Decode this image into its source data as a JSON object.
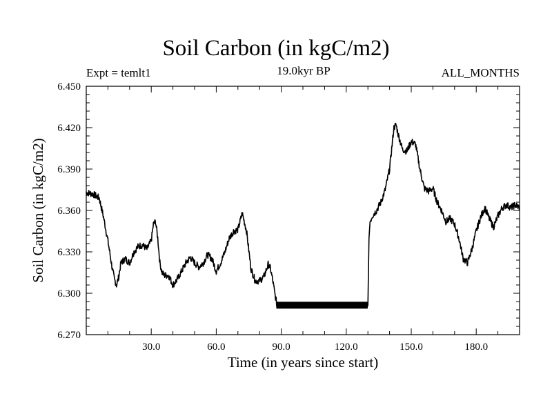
{
  "header": {
    "title": "Soil Carbon (in kgC/m2)",
    "experiment": "Expt = temlt1",
    "period": "19.0kyr BP",
    "months": "ALL_MONTHS"
  },
  "chart_data": {
    "type": "line",
    "title": "Soil Carbon (in kgC/m2)",
    "xlabel": "Time (in years since start)",
    "ylabel": "Soil Carbon (in kgC/m2)",
    "xlim": [
      0,
      200
    ],
    "ylim": [
      6.27,
      6.45
    ],
    "xticks": [
      30,
      60,
      90,
      120,
      150,
      180
    ],
    "xtick_labels": [
      "30.0",
      "60.0",
      "90.0",
      "120.0",
      "150.0",
      "180.0"
    ],
    "yticks": [
      6.27,
      6.3,
      6.33,
      6.36,
      6.39,
      6.42,
      6.45
    ],
    "ytick_labels": [
      "6.270",
      "6.300",
      "6.330",
      "6.360",
      "6.390",
      "6.420",
      "6.450"
    ],
    "grid": false,
    "series": [
      {
        "color": "#000000",
        "x": [
          0,
          3,
          6,
          8,
          10,
          12,
          13,
          14,
          15,
          16,
          18,
          20,
          22,
          24,
          26,
          28,
          30,
          31,
          32,
          33,
          34,
          35,
          36,
          38,
          40,
          42,
          44,
          46,
          48,
          50,
          52,
          54,
          56,
          58,
          60,
          62,
          64,
          66,
          68,
          70,
          72,
          74,
          76,
          78,
          80,
          82,
          84,
          85,
          86,
          87,
          88,
          90,
          95,
          100,
          105,
          110,
          115,
          120,
          125,
          130,
          130.5,
          131,
          132,
          134,
          136,
          138,
          140,
          142,
          143,
          144,
          146,
          148,
          150,
          152,
          154,
          156,
          158,
          160,
          162,
          164,
          166,
          168,
          170,
          172,
          174,
          176,
          178,
          180,
          182,
          184,
          186,
          188,
          190,
          192,
          194,
          196,
          198,
          200
        ],
        "y": [
          6.373,
          6.372,
          6.369,
          6.355,
          6.338,
          6.318,
          6.31,
          6.306,
          6.312,
          6.322,
          6.325,
          6.322,
          6.33,
          6.334,
          6.335,
          6.332,
          6.338,
          6.35,
          6.352,
          6.34,
          6.322,
          6.315,
          6.313,
          6.313,
          6.306,
          6.31,
          6.316,
          6.322,
          6.326,
          6.322,
          6.319,
          6.322,
          6.328,
          6.325,
          6.316,
          6.322,
          6.33,
          6.34,
          6.345,
          6.346,
          6.358,
          6.345,
          6.318,
          6.309,
          6.309,
          6.312,
          6.321,
          6.318,
          6.31,
          6.3,
          6.292,
          6.291,
          6.291,
          6.291,
          6.291,
          6.291,
          6.291,
          6.291,
          6.291,
          6.291,
          6.34,
          6.352,
          6.356,
          6.36,
          6.366,
          6.375,
          6.39,
          6.42,
          6.422,
          6.415,
          6.404,
          6.403,
          6.41,
          6.408,
          6.39,
          6.376,
          6.374,
          6.376,
          6.366,
          6.36,
          6.352,
          6.354,
          6.35,
          6.34,
          6.325,
          6.322,
          6.332,
          6.345,
          6.355,
          6.362,
          6.354,
          6.348,
          6.356,
          6.362,
          6.364,
          6.362,
          6.364,
          6.362
        ]
      }
    ]
  }
}
